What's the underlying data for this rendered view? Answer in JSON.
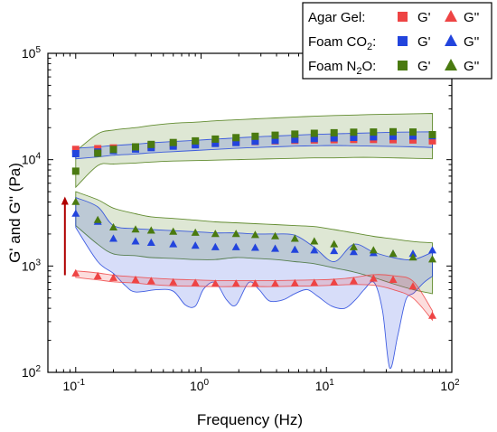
{
  "chart_data": {
    "type": "scatter",
    "xlabel": "Frequency (Hz)",
    "ylabel": "G' and G'' (Pa)",
    "xscale": "log",
    "yscale": "log",
    "xlim": [
      0.06,
      100
    ],
    "ylim": [
      100,
      100000
    ],
    "x_ticks": [
      {
        "value": 0.1,
        "base": "10",
        "exp": "-1"
      },
      {
        "value": 1,
        "base": "10",
        "exp": "0"
      },
      {
        "value": 10,
        "base": "10",
        "exp": "1"
      },
      {
        "value": 100,
        "base": "10",
        "exp": "2"
      }
    ],
    "y_ticks": [
      {
        "value": 100,
        "base": "10",
        "exp": "2"
      },
      {
        "value": 1000,
        "base": "10",
        "exp": "3"
      },
      {
        "value": 10000,
        "base": "10",
        "exp": "4"
      },
      {
        "value": 100000,
        "base": "10",
        "exp": "5"
      }
    ],
    "legend": {
      "position": "top-right",
      "rows": [
        {
          "label": "Agar Gel:",
          "sub": "",
          "suffix": "",
          "gp_label": "G'",
          "gpp_label": "G''",
          "color": "#ee4444"
        },
        {
          "label": "Foam CO",
          "sub": "2",
          "suffix": ":",
          "gp_label": "G'",
          "gpp_label": "G''",
          "color": "#2244dd"
        },
        {
          "label": "Foam N",
          "sub": "2",
          "suffix": "O:",
          "gp_label": "G'",
          "gpp_label": "G''",
          "color": "#4a7a10"
        }
      ]
    },
    "frequencies": [
      0.1,
      0.15,
      0.2,
      0.3,
      0.4,
      0.6,
      0.9,
      1.3,
      1.9,
      2.7,
      3.9,
      5.6,
      8,
      11.5,
      16.5,
      23.7,
      34,
      49,
      70
    ],
    "series": [
      {
        "name": "Agar Gel",
        "modulus": "G'",
        "marker": "square",
        "color": "#ee4444",
        "y": [
          12500,
          12700,
          12900,
          13200,
          13500,
          13800,
          14100,
          14400,
          14600,
          14800,
          15000,
          15200,
          15300,
          15400,
          15500,
          15500,
          15400,
          15300,
          15000
        ]
      },
      {
        "name": "Foam CO2",
        "modulus": "G'",
        "marker": "square",
        "color": "#2244dd",
        "y": [
          11400,
          11800,
          12200,
          12600,
          13000,
          13400,
          13800,
          14200,
          14500,
          14900,
          15200,
          15500,
          15800,
          16000,
          16200,
          16400,
          16600,
          16700,
          16800
        ]
      },
      {
        "name": "Foam N2O",
        "modulus": "G'",
        "marker": "square",
        "color": "#4a7a10",
        "y": [
          7800,
          11500,
          12500,
          13200,
          13900,
          14500,
          15000,
          15600,
          16100,
          16600,
          17000,
          17400,
          17700,
          17900,
          18100,
          18200,
          18300,
          18200,
          17200
        ]
      },
      {
        "name": "Agar Gel",
        "modulus": "G''",
        "marker": "triangle",
        "color": "#ee4444",
        "y": [
          850,
          800,
          770,
          740,
          720,
          700,
          690,
          680,
          680,
          680,
          680,
          685,
          690,
          700,
          720,
          760,
          740,
          640,
          340
        ]
      },
      {
        "name": "Foam CO2",
        "modulus": "G''",
        "marker": "triangle",
        "color": "#2244dd",
        "y": [
          3100,
          2600,
          1800,
          1700,
          1650,
          1600,
          1550,
          1500,
          1500,
          1480,
          1450,
          1420,
          1400,
          1380,
          1350,
          1320,
          1300,
          1300,
          1400
        ]
      },
      {
        "name": "Foam N2O",
        "modulus": "G''",
        "marker": "triangle",
        "color": "#4a7a10",
        "y": [
          4000,
          2700,
          2300,
          2200,
          2150,
          2100,
          2050,
          2000,
          2000,
          1950,
          1900,
          1800,
          1700,
          1600,
          1500,
          1400,
          1300,
          1200,
          1150
        ]
      }
    ],
    "bands": [
      {
        "name": "Foam N2O G' range",
        "color": "#4a7a10",
        "upper": [
          12000,
          17500,
          19000,
          20000,
          21000,
          22000,
          22500,
          23200,
          23700,
          24200,
          24700,
          25200,
          25600,
          26000,
          26300,
          26600,
          26800,
          27000,
          27200
        ],
        "lower": [
          5500,
          8800,
          9100,
          9300,
          9500,
          9700,
          9800,
          9900,
          10000,
          10100,
          10200,
          10300,
          10400,
          10400,
          10500,
          10500,
          10400,
          10300,
          10200
        ]
      },
      {
        "name": "Foam CO2 G' range",
        "color": "#2244dd",
        "upper": [
          12800,
          13200,
          13600,
          14000,
          14400,
          14800,
          15200,
          15600,
          16000,
          16400,
          16700,
          17000,
          17300,
          17500,
          17700,
          17900,
          18100,
          18200,
          18300
        ],
        "lower": [
          10200,
          10600,
          11000,
          11300,
          11600,
          11900,
          12200,
          12500,
          12800,
          13000,
          13200,
          13400,
          13500,
          13600,
          13500,
          13400,
          13300,
          13200,
          13000
        ]
      },
      {
        "name": "Foam N2O G'' range",
        "color": "#4a7a10",
        "upper": [
          5000,
          4200,
          3500,
          3100,
          2900,
          2800,
          2700,
          2600,
          2550,
          2500,
          2450,
          2400,
          2350,
          2200,
          2050,
          1900,
          1800,
          1700,
          1650
        ],
        "lower": [
          2400,
          1600,
          1300,
          1250,
          1200,
          1180,
          1150,
          1150,
          1200,
          1180,
          1150,
          1100,
          1050,
          960,
          880,
          780,
          680,
          600,
          550
        ]
      },
      {
        "name": "Foam CO2 G'' range",
        "color": "#2244dd",
        "upper": [
          4400,
          3600,
          2400,
          2250,
          2200,
          2150,
          2100,
          2050,
          2050,
          2000,
          2000,
          1950,
          1500,
          1100,
          1600,
          1350,
          1200,
          1150,
          1350
        ]
      },
      {
        "name": "Agar Gel G'' range",
        "color": "#ee4444",
        "upper": [
          900,
          860,
          820,
          790,
          770,
          750,
          740,
          730,
          730,
          730,
          730,
          735,
          740,
          750,
          780,
          830,
          810,
          720,
          380
        ],
        "lower": [
          780,
          740,
          710,
          690,
          670,
          650,
          645,
          640,
          640,
          640,
          640,
          645,
          650,
          660,
          670,
          660,
          600,
          500,
          310
        ]
      }
    ],
    "co2_gpp_lower_band": {
      "x": [
        0.1,
        0.15,
        0.2,
        0.25,
        0.3,
        0.45,
        0.6,
        0.75,
        0.9,
        1.05,
        1.3,
        1.6,
        1.9,
        2.4,
        2.9,
        3.5,
        4.5,
        5.6,
        7,
        8.5,
        11,
        14,
        17,
        20,
        24,
        28,
        32,
        37,
        43,
        50,
        60,
        70
      ],
      "y": [
        2300,
        1100,
        850,
        650,
        570,
        600,
        580,
        430,
        420,
        610,
        700,
        480,
        430,
        700,
        600,
        470,
        480,
        550,
        600,
        520,
        420,
        400,
        480,
        600,
        700,
        380,
        110,
        220,
        480,
        560,
        700,
        800
      ]
    },
    "arrow": {
      "x": 0.082,
      "y_start": 820,
      "y_end": 4500,
      "color": "#b00000"
    }
  }
}
